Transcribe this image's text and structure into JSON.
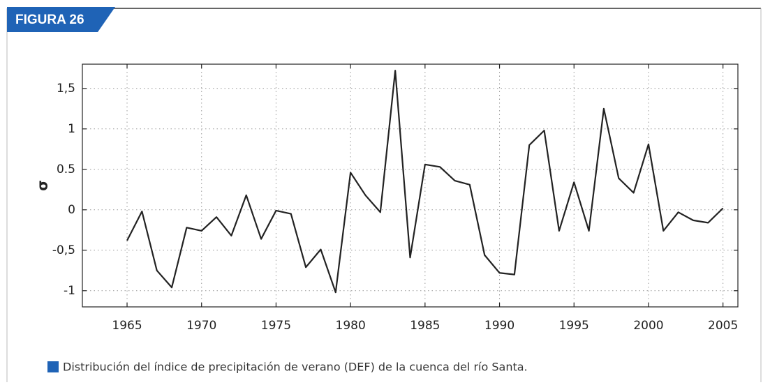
{
  "figure": {
    "label": "FIGURA 26",
    "caption": "Distribución del índice de precipitación de verano (DEF) de la cuenca del río Santa."
  },
  "chart_data": {
    "type": "line",
    "y_label": "σ",
    "x": [
      1965,
      1966,
      1967,
      1968,
      1969,
      1970,
      1971,
      1972,
      1973,
      1974,
      1975,
      1976,
      1977,
      1978,
      1979,
      1980,
      1981,
      1982,
      1983,
      1984,
      1985,
      1986,
      1987,
      1988,
      1989,
      1990,
      1991,
      1992,
      1993,
      1994,
      1995,
      1996,
      1997,
      1998,
      1999,
      2000,
      2001,
      2002,
      2003,
      2004,
      2005
    ],
    "series": [
      {
        "color": "#222222",
        "values": [
          -0.38,
          -0.02,
          -0.75,
          -0.96,
          -0.22,
          -0.26,
          -0.09,
          -0.32,
          0.18,
          -0.36,
          -0.01,
          -0.05,
          -0.71,
          -0.49,
          -1.02,
          0.46,
          0.18,
          -0.03,
          1.72,
          -0.59,
          0.56,
          0.53,
          0.36,
          0.31,
          -0.56,
          -0.78,
          -0.8,
          0.8,
          0.98,
          -0.26,
          0.34,
          -0.26,
          1.25,
          0.39,
          0.21,
          0.81,
          -0.26,
          -0.03,
          -0.13,
          -0.16,
          0.02
        ]
      }
    ],
    "xlim": [
      1962,
      2006
    ],
    "xticks": [
      1965,
      1970,
      1975,
      1980,
      1985,
      1990,
      1995,
      2000,
      2005
    ],
    "ylim": [
      -1.2,
      1.8
    ],
    "yticks": [
      {
        "value": -1,
        "label": "-1"
      },
      {
        "value": -0.5,
        "label": "-0,5"
      },
      0,
      0.5,
      1,
      {
        "value": 1.5,
        "label": "1,5"
      }
    ],
    "grid": true
  }
}
